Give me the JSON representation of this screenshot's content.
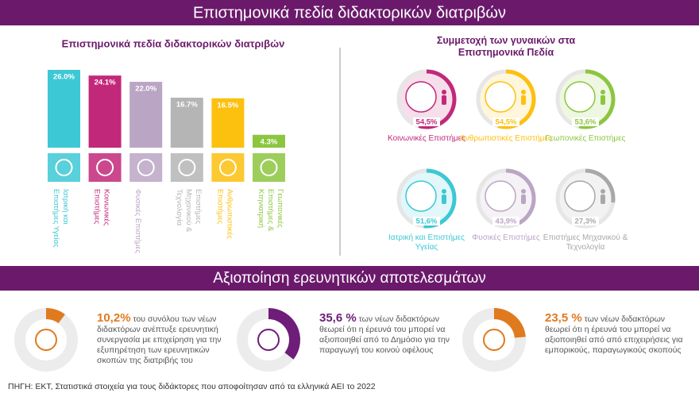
{
  "header": {
    "title": "Επιστημονικά πεδία διδακτορικών διατριβών"
  },
  "chart_data": [
    {
      "type": "bar",
      "title": "Επιστημονικά πεδία διδακτορικών διατριβών",
      "categories": [
        "Ιατρική και Επιστήμες Υγείας",
        "Κοινωνικές Επιστήμες",
        "Φυσικές Επιστήμες",
        "Επιστήμες Μηχανικού & Τεχνολογία",
        "Ανθρωπιστικές Επιστήμες",
        "Γεωπονικές Επιστήμες & Κτηνιατρική"
      ],
      "values": [
        26.0,
        24.1,
        22.0,
        16.7,
        16.5,
        4.3
      ],
      "value_labels": [
        "26.0%",
        "24.1%",
        "22.0%",
        "16.7%",
        "16.5%",
        "4.3%"
      ],
      "colors": [
        "#3cc8d4",
        "#c2287a",
        "#bba5c4",
        "#b5b5b5",
        "#fcc00f",
        "#8cc63f"
      ]
    },
    {
      "type": "ring",
      "title": "Συμμετοχή των γυναικών στα Επιστημονικά Πεδία",
      "categories": [
        "Κοινωνικές Επιστήμες",
        "Ανθρωπιστικές Επιστήμες",
        "Γεωπονικές Επιστήμες",
        "Ιατρική και Επιστήμες Υγείας",
        "Φυσικές Επιστήμες",
        "Επιστήμες Μηχανικού & Τεχνολογία"
      ],
      "values": [
        54.5,
        54.5,
        53.6,
        51.6,
        43.9,
        27.3
      ],
      "value_labels": [
        "54,5%",
        "54,5%",
        "53,6%",
        "51,6%",
        "43,9%",
        "27,3%"
      ],
      "colors": [
        "#c2287a",
        "#fcc00f",
        "#8cc63f",
        "#3cc8d4",
        "#bba5c4",
        "#a8a8a8"
      ]
    },
    {
      "type": "donut",
      "title": "Αξιοποίηση ερευνητικών αποτελεσμάτων",
      "values": [
        10.2,
        35.6,
        23.5
      ],
      "value_labels": [
        "10,2%",
        "35,6 %",
        "23,5 %"
      ],
      "texts": [
        "του συνόλου των νέων διδακτόρων ανέπτυξε ερευνητική συνεργασία με επιχείρηση για την εξυπηρέτηση των ερευνητικών σκοπών της διατριβής του",
        "των νέων διδακτόρων θεωρεί ότι η έρευνά του μπορεί να αξιοποιηθεί από το Δημόσιο για την παραγωγή του κοινού οφέλους",
        "των νέων διδακτόρων θεωρεί ότι η έρευνά του μπορεί να αξιοποιηθεί από  από επιχειρήσεις για εμπορικούς, παραγωγικούς σκοπούς"
      ],
      "colors": [
        "#e07a1f",
        "#6e1d78",
        "#e07a1f"
      ]
    }
  ],
  "source": "ΠΗΓΗ: ΕΚΤ, Στατιστικά στοιχεία για τους διδάκτορες που αποφοίτησαν από τα ελληνικά ΑΕΙ το 2022"
}
